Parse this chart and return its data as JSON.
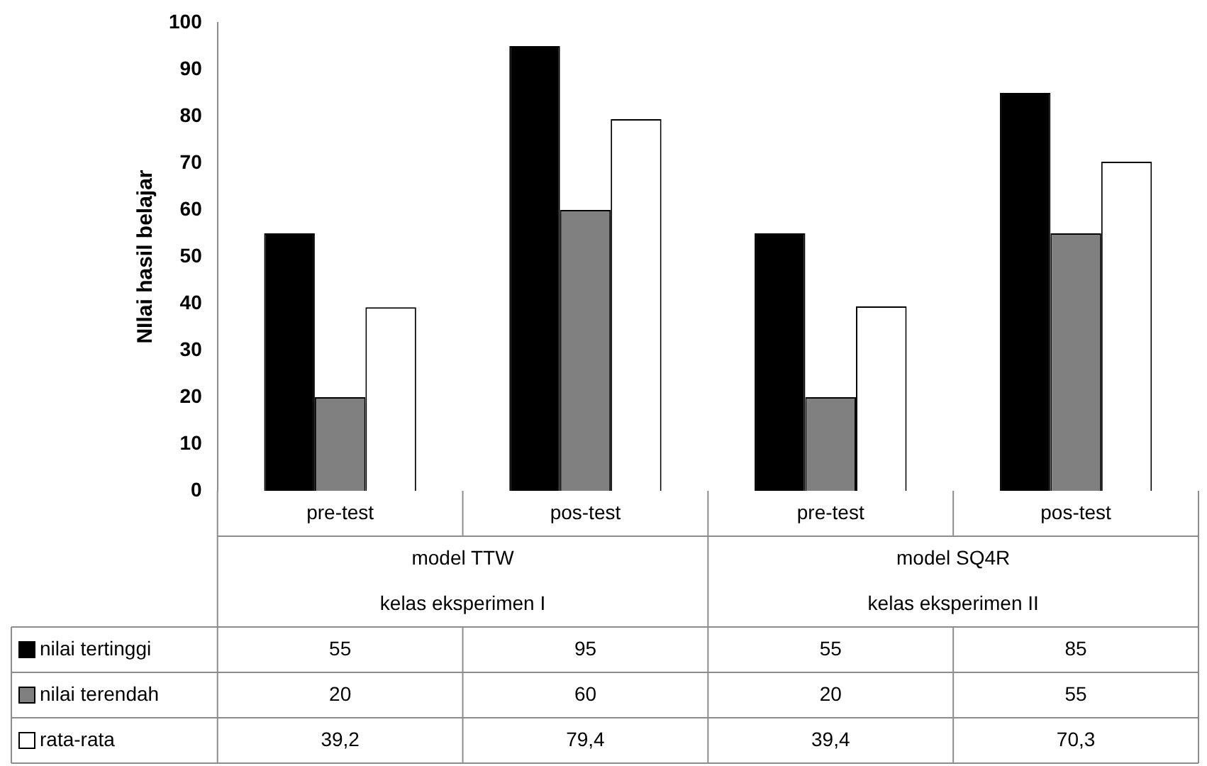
{
  "chart_data": {
    "type": "bar",
    "ylabel": "NIlai hasil belajar",
    "categories": [
      "pre-test",
      "pos-test",
      "pre-test",
      "pos-test"
    ],
    "annotations": [
      "model TTW",
      "kelas eksperimen I",
      "model SQ4R",
      "kelas eksperimen II"
    ],
    "series": [
      {
        "name": "nilai tertinggi",
        "color": "#000000",
        "values": [
          55,
          95,
          55,
          85
        ],
        "value_labels": [
          "55",
          "95",
          "55",
          "85"
        ]
      },
      {
        "name": "nilai terendah",
        "color": "#808080",
        "values": [
          20,
          60,
          20,
          55
        ],
        "value_labels": [
          "20",
          "60",
          "20",
          "55"
        ]
      },
      {
        "name": "rata-rata",
        "color": "#ffffff",
        "values": [
          39.2,
          79.4,
          39.4,
          70.3
        ],
        "value_labels": [
          "39,2",
          "79,4",
          "39,4",
          "70,3"
        ]
      }
    ],
    "ylim": [
      0,
      100
    ],
    "yticks": [
      0,
      10,
      20,
      30,
      40,
      50,
      60,
      70,
      80,
      90,
      100
    ],
    "grid": false,
    "legend": "bottom"
  }
}
